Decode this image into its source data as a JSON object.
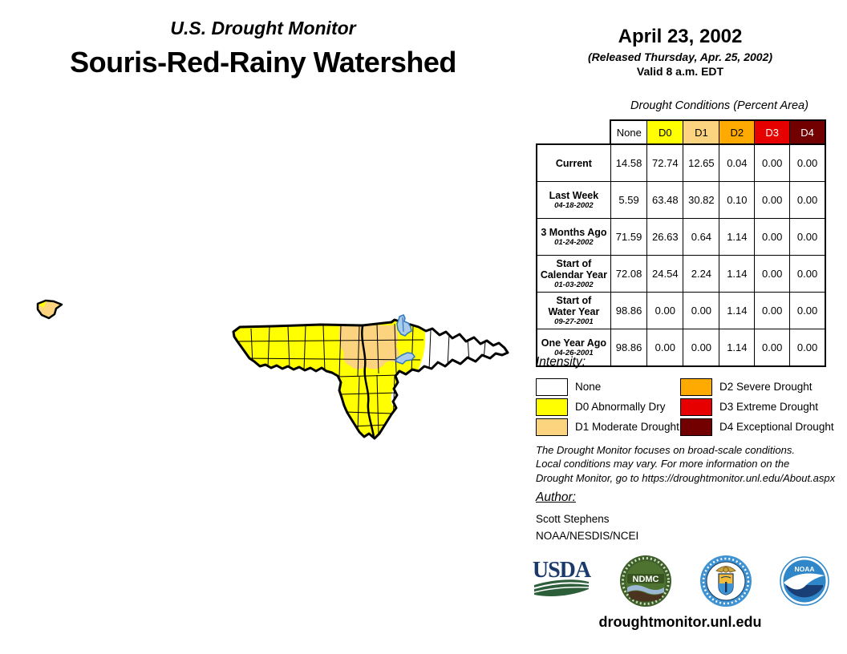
{
  "header": {
    "super_title": "U.S. Drought Monitor",
    "title": "Souris-Red-Rainy Watershed"
  },
  "date_block": {
    "date": "April 23, 2002",
    "released": "(Released Thursday, Apr. 25, 2002)",
    "valid": "Valid 8 a.m. EDT"
  },
  "conditions_table": {
    "title": "Drought Conditions (Percent Area)",
    "columns": [
      "None",
      "D0",
      "D1",
      "D2",
      "D3",
      "D4"
    ],
    "column_colors": [
      "#FFFFFF",
      "#FFFF00",
      "#FCD37F",
      "#FFAA00",
      "#E60000",
      "#730000"
    ],
    "column_text_colors": [
      "#000000",
      "#000000",
      "#000000",
      "#000000",
      "#FFFFFF",
      "#FFFFFF"
    ],
    "rows": [
      {
        "line1": "Current",
        "line2": "",
        "date": "",
        "values": [
          "14.58",
          "72.74",
          "12.65",
          "0.04",
          "0.00",
          "0.00"
        ]
      },
      {
        "line1": "Last Week",
        "line2": "",
        "date": "04-18-2002",
        "values": [
          "5.59",
          "63.48",
          "30.82",
          "0.10",
          "0.00",
          "0.00"
        ]
      },
      {
        "line1": "3 Months Ago",
        "line2": "",
        "date": "01-24-2002",
        "values": [
          "71.59",
          "26.63",
          "0.64",
          "1.14",
          "0.00",
          "0.00"
        ]
      },
      {
        "line1": "Start of",
        "line2": "Calendar Year",
        "date": "01-03-2002",
        "values": [
          "72.08",
          "24.54",
          "2.24",
          "1.14",
          "0.00",
          "0.00"
        ]
      },
      {
        "line1": "Start of",
        "line2": "Water Year",
        "date": "09-27-2001",
        "values": [
          "98.86",
          "0.00",
          "0.00",
          "1.14",
          "0.00",
          "0.00"
        ]
      },
      {
        "line1": "One Year Ago",
        "line2": "",
        "date": "04-26-2001",
        "values": [
          "98.86",
          "0.00",
          "0.00",
          "1.14",
          "0.00",
          "0.00"
        ]
      }
    ]
  },
  "legend": {
    "title": "Intensity:",
    "items": [
      {
        "label": "None",
        "color": "#FFFFFF"
      },
      {
        "label": "D0 Abnormally Dry",
        "color": "#FFFF00"
      },
      {
        "label": "D1 Moderate Drought",
        "color": "#FCD37F"
      },
      {
        "label": "D2 Severe Drought",
        "color": "#FFAA00"
      },
      {
        "label": "D3 Extreme Drought",
        "color": "#E60000"
      },
      {
        "label": "D4 Exceptional Drought",
        "color": "#730000"
      }
    ]
  },
  "disclaimer": {
    "lines": [
      "The Drought Monitor focuses on broad-scale conditions.",
      "Local conditions may vary. For more information on the",
      "Drought Monitor, go to https://droughtmonitor.unl.edu/About.aspx"
    ]
  },
  "author": {
    "title": "Author:",
    "name": "Scott Stephens",
    "org": "NOAA/NESDIS/NCEI"
  },
  "logos": [
    {
      "name": "USDA"
    },
    {
      "name": "NDMC"
    },
    {
      "name": "U.S. Department of Commerce"
    },
    {
      "name": "NOAA"
    }
  ],
  "footer": {
    "url": "droughtmonitor.unl.edu"
  },
  "map": {
    "region": "Souris-Red-Rainy Watershed",
    "dominant_category": "D0 Abnormally Dry",
    "colors": {
      "none": "#FFFFFF",
      "d0": "#FFFF00",
      "d1": "#FCD37F",
      "d2": "#FFAA00",
      "d3": "#E60000",
      "d4": "#730000",
      "lake": "#A9CBEC",
      "lake_border": "#3377BE",
      "outline": "#000000"
    }
  }
}
